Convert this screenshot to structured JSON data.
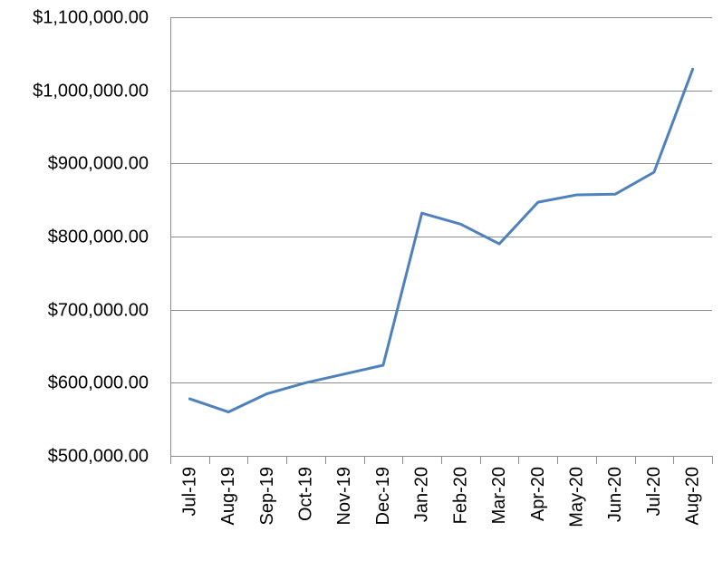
{
  "chart_data": {
    "type": "line",
    "title": "",
    "xlabel": "",
    "ylabel": "",
    "categories": [
      "Jul-19",
      "Aug-19",
      "Sep-19",
      "Oct-19",
      "Nov-19",
      "Dec-19",
      "Jan-20",
      "Feb-20",
      "Mar-20",
      "Apr-20",
      "May-20",
      "Jun-20",
      "Jul-20",
      "Aug-20"
    ],
    "series": [
      {
        "color": "#4f81bd",
        "values": [
          578000,
          560000,
          585000,
          600000,
          612000,
          624000,
          832000,
          817000,
          790000,
          847000,
          857000,
          858000,
          888000,
          1029000
        ]
      }
    ],
    "ylim": [
      500000,
      1100000
    ],
    "yticks": [
      500000,
      600000,
      700000,
      800000,
      900000,
      1000000,
      1100000
    ],
    "ytick_labels": [
      "$500,000.00",
      "$600,000.00",
      "$700,000.00",
      "$800,000.00",
      "$900,000.00",
      "$1,000,000.00",
      "$1,100,000.00"
    ],
    "grid": true,
    "legend": "none"
  }
}
